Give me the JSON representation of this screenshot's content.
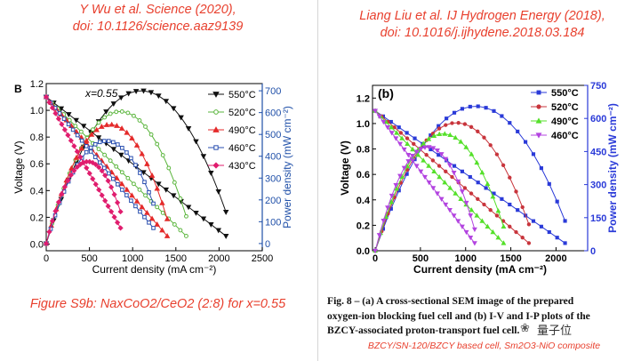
{
  "left_panel": {
    "citation_line1": "Y Wu et al. Science (2020),",
    "citation_line2": "doi: 10.1126/science.aaz9139",
    "caption": "Figure S9b: NaxCoO2/CeO2 (2:8) for x=0.55"
  },
  "right_panel": {
    "citation_line1": "Liang Liu et al. IJ Hydrogen Energy (2018),",
    "citation_line2": "doi: 10.1016/j.ijhydene.2018.03.184",
    "caption_line1": "Fig. 8 – (a) A cross-sectional SEM image of the prepared",
    "caption_line2": "oxygen-ion blocking fuel cell and (b) I-V and I-P plots of the",
    "caption_line3": "BZCY-associated proton-transport fuel cell.",
    "footnote": "BZCY/SN-120/BZCY based cell, Sm2O3-NiO composite"
  },
  "watermark": "量子位",
  "chart_data": [
    {
      "type": "line",
      "panel_label": "B",
      "annotation": "x=0.55",
      "xlabel": "Current density (mA cm⁻²)",
      "ylabel": "Voltage (V)",
      "y2label": "Power density (mW cm⁻²)",
      "xlim": [
        0,
        2500
      ],
      "ylim": [
        -0.05,
        1.2
      ],
      "y2lim": [
        -33,
        733
      ],
      "xticks": [
        0,
        500,
        1000,
        1500,
        2000,
        2500
      ],
      "yticks": [
        0.0,
        0.2,
        0.4,
        0.6,
        0.8,
        1.0,
        1.2
      ],
      "y2ticks": [
        0,
        100,
        200,
        300,
        400,
        500,
        600,
        700
      ],
      "grid": false,
      "legend_position": "top-right",
      "series": [
        {
          "name": "550°C",
          "color": "#111111",
          "marker": "triangle-down",
          "ocv": 1.1,
          "i_max": 2080,
          "v_end": 0.06,
          "p_max": 700
        },
        {
          "name": "520°C",
          "color": "#5ab53c",
          "marker": "circle-open",
          "ocv": 1.1,
          "i_max": 1620,
          "v_end": 0.06,
          "p_max": 605
        },
        {
          "name": "490°C",
          "color": "#e42a2a",
          "marker": "triangle-up",
          "ocv": 1.1,
          "i_max": 1400,
          "v_end": 0.06,
          "p_max": 545
        },
        {
          "name": "460°C",
          "color": "#2a4fb0",
          "marker": "square-open",
          "ocv": 1.1,
          "i_max": 1240,
          "v_end": 0.12,
          "p_max": 470
        },
        {
          "name": "430°C",
          "color": "#e01d6e",
          "marker": "diamond",
          "ocv": 1.1,
          "i_max": 860,
          "v_end": 0.12,
          "p_max": 375
        }
      ]
    },
    {
      "type": "line",
      "panel_label": "(b)",
      "xlabel": "Current density (mA cm⁻²)",
      "ylabel": "Voltage (V)",
      "y2label": "Power density (mW cm⁻²)",
      "xlim": [
        -30,
        2350
      ],
      "ylim": [
        0.0,
        1.3
      ],
      "y2lim": [
        0,
        750
      ],
      "xticks": [
        0,
        500,
        1000,
        1500,
        2000
      ],
      "yticks": [
        0.0,
        0.2,
        0.4,
        0.6,
        0.8,
        1.0,
        1.2
      ],
      "y2ticks": [
        0,
        150,
        300,
        450,
        600,
        750
      ],
      "grid": false,
      "legend_position": "top-right",
      "series": [
        {
          "name": "550°C",
          "color": "#2a3ad8",
          "marker": "square",
          "ocv": 1.1,
          "i_max": 2100,
          "v_end": 0.06,
          "p_max": 655
        },
        {
          "name": "520°C",
          "color": "#c8353c",
          "marker": "circle",
          "ocv": 1.1,
          "i_max": 1700,
          "v_end": 0.06,
          "p_max": 580
        },
        {
          "name": "490°C",
          "color": "#55e02a",
          "marker": "triangle-up",
          "ocv": 1.1,
          "i_max": 1420,
          "v_end": 0.06,
          "p_max": 530
        },
        {
          "name": "460°C",
          "color": "#b344e0",
          "marker": "triangle-down",
          "ocv": 1.1,
          "i_max": 1100,
          "v_end": 0.06,
          "p_max": 470
        }
      ]
    }
  ]
}
